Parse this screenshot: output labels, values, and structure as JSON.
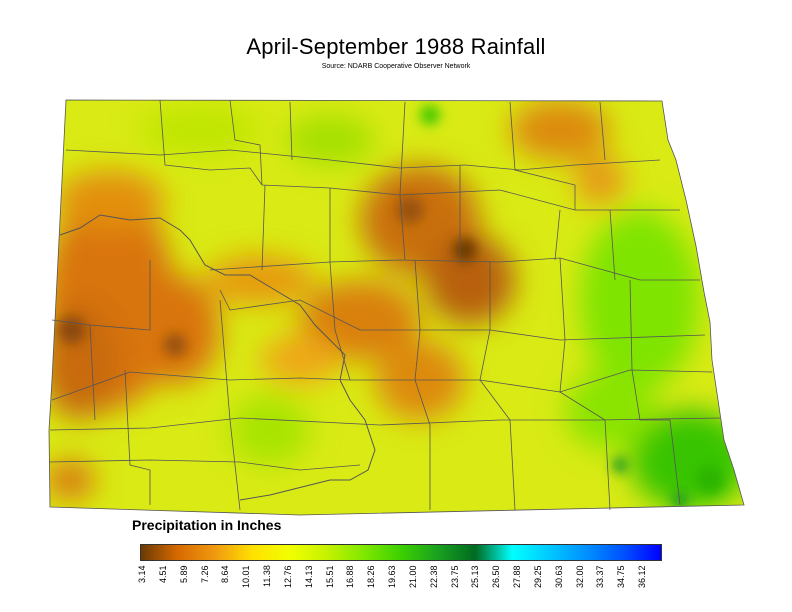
{
  "title": "April-September 1988 Rainfall",
  "source": "Source: NDARB Cooperative Observer Network",
  "legend": {
    "title": "Precipitation in Inches",
    "ticks": [
      "3.14",
      "4.51",
      "5.89",
      "7.26",
      "8.64",
      "10.01",
      "11.38",
      "12.76",
      "14.13",
      "15.51",
      "16.88",
      "18.26",
      "19.63",
      "21.00",
      "22.38",
      "23.75",
      "25.13",
      "26.50",
      "27.88",
      "29.25",
      "30.63",
      "32.00",
      "33.37",
      "34.75",
      "36.12"
    ],
    "gradient": [
      "#6b3a05",
      "#d86a00",
      "#f09a10",
      "#ffe000",
      "#f2ff00",
      "#c6f200",
      "#80e800",
      "#3cd000",
      "#1aa020",
      "#006a20",
      "#00ffff",
      "#00c8ff",
      "#0090ff",
      "#0050ff",
      "#0000ff"
    ]
  },
  "colors": {
    "dry_dark": "#7a4a0a",
    "dry": "#d97a10",
    "moderate": "#f0d000",
    "normal": "#c8ee00",
    "wet": "#3ecc00",
    "wet_dark": "#138a20",
    "county_line": "#555555"
  }
}
